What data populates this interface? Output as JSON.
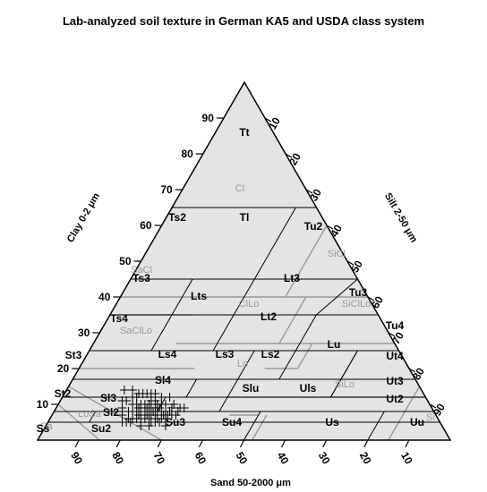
{
  "chart_data": {
    "type": "scatter",
    "subtype": "ternary",
    "title": "Lab-analyzed soil texture in  German KA5 and USDA class system",
    "axes": {
      "clay": {
        "label": "Clay 0-2 μm",
        "ticks": [
          "10",
          "20",
          "30",
          "40",
          "50",
          "60",
          "70",
          "80",
          "90"
        ]
      },
      "silt": {
        "label": "Silt 2-50 μm",
        "ticks": [
          "10",
          "20",
          "30",
          "40",
          "50",
          "60",
          "70",
          "80",
          "90"
        ]
      },
      "sand": {
        "label": "Sand 50-2000 μm",
        "ticks": [
          "90",
          "80",
          "70",
          "60",
          "50",
          "40",
          "30",
          "20",
          "10"
        ]
      }
    },
    "colors": {
      "triangle_fill": "#e4e4e4",
      "ka5_lines": "#000000",
      "usda_lines": "#9a9a9a",
      "points": "#000000"
    },
    "ka5_classes": [
      "Tt",
      "Ts2",
      "Tl",
      "Tu2",
      "Ts3",
      "Lts",
      "Lt3",
      "Tu3",
      "Ts4",
      "Lt2",
      "Tu4",
      "Lu",
      "St3",
      "Ls4",
      "Ls3",
      "Ls2",
      "Ut4",
      "Sl4",
      "St2",
      "Sl3",
      "Slu",
      "Uls",
      "Ut3",
      "Sl2",
      "Ut2",
      "Su3",
      "Ss",
      "Su2",
      "Su4",
      "Us",
      "Uu"
    ],
    "usda_classes": [
      "Cl",
      "SiCl",
      "SaCl",
      "ClLo",
      "SiClLo",
      "SaClLo",
      "Lo",
      "SiLo",
      "LoSa",
      "Sa",
      "Si"
    ],
    "points": [
      {
        "sand": 68,
        "silt": 25,
        "clay": 7
      },
      {
        "sand": 70,
        "silt": 22,
        "clay": 8
      },
      {
        "sand": 66,
        "silt": 26,
        "clay": 8
      },
      {
        "sand": 72,
        "silt": 20,
        "clay": 8
      },
      {
        "sand": 69,
        "silt": 23,
        "clay": 8
      },
      {
        "sand": 67,
        "silt": 27,
        "clay": 6
      },
      {
        "sand": 71,
        "silt": 23,
        "clay": 6
      },
      {
        "sand": 65,
        "silt": 28,
        "clay": 7
      },
      {
        "sand": 73,
        "silt": 21,
        "clay": 6
      },
      {
        "sand": 68,
        "silt": 27,
        "clay": 5
      },
      {
        "sand": 70,
        "silt": 25,
        "clay": 5
      },
      {
        "sand": 64,
        "silt": 29,
        "clay": 7
      },
      {
        "sand": 69,
        "silt": 21,
        "clay": 10
      },
      {
        "sand": 66,
        "silt": 24,
        "clay": 10
      },
      {
        "sand": 71,
        "silt": 19,
        "clay": 10
      },
      {
        "sand": 67,
        "silt": 22,
        "clay": 11
      },
      {
        "sand": 72,
        "silt": 18,
        "clay": 10
      },
      {
        "sand": 68,
        "silt": 23,
        "clay": 9
      },
      {
        "sand": 63,
        "silt": 28,
        "clay": 9
      },
      {
        "sand": 74,
        "silt": 18,
        "clay": 8
      },
      {
        "sand": 70,
        "silt": 20,
        "clay": 10
      },
      {
        "sand": 65,
        "silt": 25,
        "clay": 10
      },
      {
        "sand": 67,
        "silt": 20,
        "clay": 13
      },
      {
        "sand": 69,
        "silt": 18,
        "clay": 13
      },
      {
        "sand": 70,
        "silt": 16,
        "clay": 14
      },
      {
        "sand": 72,
        "silt": 14,
        "clay": 14
      },
      {
        "sand": 68,
        "silt": 24,
        "clay": 8
      },
      {
        "sand": 66,
        "silt": 27,
        "clay": 7
      },
      {
        "sand": 74,
        "silt": 20,
        "clay": 6
      },
      {
        "sand": 75,
        "silt": 19,
        "clay": 6
      },
      {
        "sand": 64,
        "silt": 26,
        "clay": 10
      },
      {
        "sand": 62,
        "silt": 28,
        "clay": 10
      },
      {
        "sand": 66,
        "silt": 21,
        "clay": 13
      },
      {
        "sand": 71,
        "silt": 17,
        "clay": 12
      },
      {
        "sand": 69,
        "silt": 26,
        "clay": 5
      },
      {
        "sand": 67,
        "silt": 29,
        "clay": 4
      },
      {
        "sand": 73,
        "silt": 23,
        "clay": 4
      },
      {
        "sand": 71,
        "silt": 25,
        "clay": 4
      },
      {
        "sand": 76,
        "silt": 17,
        "clay": 7
      },
      {
        "sand": 75,
        "silt": 20,
        "clay": 5
      },
      {
        "sand": 63,
        "silt": 30,
        "clay": 7
      },
      {
        "sand": 65,
        "silt": 27,
        "clay": 8
      },
      {
        "sand": 67,
        "silt": 25,
        "clay": 8
      },
      {
        "sand": 69,
        "silt": 24,
        "clay": 7
      },
      {
        "sand": 72,
        "silt": 22,
        "clay": 6
      },
      {
        "sand": 70,
        "silt": 23,
        "clay": 7
      },
      {
        "sand": 68,
        "silt": 22,
        "clay": 10
      },
      {
        "sand": 66,
        "silt": 23,
        "clay": 11
      },
      {
        "sand": 64,
        "silt": 24,
        "clay": 12
      },
      {
        "sand": 70,
        "silt": 18,
        "clay": 12
      },
      {
        "sand": 73,
        "silt": 16,
        "clay": 11
      },
      {
        "sand": 61,
        "silt": 30,
        "clay": 9
      },
      {
        "sand": 60,
        "silt": 31,
        "clay": 9
      },
      {
        "sand": 62,
        "silt": 26,
        "clay": 12
      },
      {
        "sand": 75,
        "silt": 16,
        "clay": 9
      },
      {
        "sand": 74,
        "silt": 15,
        "clay": 11
      },
      {
        "sand": 68,
        "silt": 19,
        "clay": 13
      },
      {
        "sand": 65,
        "silt": 22,
        "clay": 13
      },
      {
        "sand": 71,
        "silt": 21,
        "clay": 8
      },
      {
        "sand": 69,
        "silt": 22,
        "clay": 9
      },
      {
        "sand": 67,
        "silt": 24,
        "clay": 9
      },
      {
        "sand": 66,
        "silt": 25,
        "clay": 9
      },
      {
        "sand": 70,
        "silt": 24,
        "clay": 6
      },
      {
        "sand": 72,
        "silt": 21,
        "clay": 7
      },
      {
        "sand": 64,
        "silt": 28,
        "clay": 8
      },
      {
        "sand": 62,
        "silt": 30,
        "clay": 8
      },
      {
        "sand": 76,
        "silt": 19,
        "clay": 5
      },
      {
        "sand": 77,
        "silt": 18,
        "clay": 5
      },
      {
        "sand": 68,
        "silt": 26,
        "clay": 6
      },
      {
        "sand": 66,
        "silt": 28,
        "clay": 6
      },
      {
        "sand": 73,
        "silt": 19,
        "clay": 8
      },
      {
        "sand": 71,
        "silt": 20,
        "clay": 9
      }
    ]
  }
}
